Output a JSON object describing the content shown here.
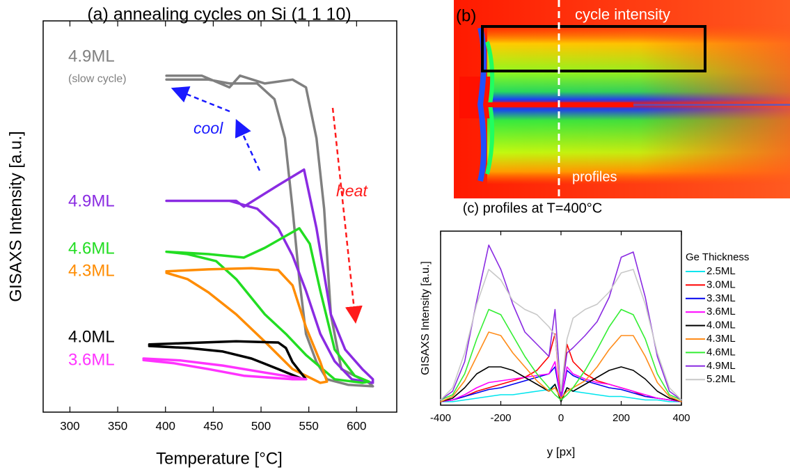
{
  "chart_data": [
    {
      "type": "line",
      "title": "(a) annealing cycles on Si (1 1 10)",
      "x_label": "Temperature [°C]",
      "y_label": "GISAXS Intensity [a.u.]",
      "xlim": [
        272,
        642
      ],
      "ylim": [
        0,
        100
      ],
      "xticks": [
        300,
        350,
        400,
        450,
        500,
        550,
        600
      ],
      "annotations": [
        "(slow cycle)",
        "cool",
        "heat"
      ],
      "series": [
        {
          "name": "4.9ML",
          "color": "#808080",
          "x": [
            401,
            438,
            467,
            478,
            504,
            533,
            547,
            558,
            566,
            573,
            584,
            613,
            617,
            591,
            569,
            558,
            547,
            540,
            533,
            525,
            514,
            496,
            467,
            445,
            401
          ],
          "values": [
            86,
            86,
            83,
            86,
            84,
            85,
            83,
            70,
            52,
            25,
            11,
            7.5,
            6.6,
            7,
            8.4,
            12.8,
            20,
            34,
            52,
            70,
            80,
            84,
            84,
            85,
            85
          ]
        },
        {
          "name": "4.9ML",
          "color": "#8a2be2",
          "x": [
            401,
            474,
            482,
            518,
            545,
            558,
            573,
            588,
            606,
            617,
            617,
            595,
            577,
            562,
            547,
            533,
            518,
            496,
            467,
            401
          ],
          "values": [
            54,
            54,
            52.5,
            58,
            62,
            47,
            25,
            16,
            11,
            8.4,
            7.5,
            8.4,
            13,
            20,
            31,
            40,
            47,
            52,
            54,
            54
          ]
        },
        {
          "name": "4.6ML",
          "color": "#22dd22",
          "x": [
            401,
            445,
            482,
            504,
            540,
            551,
            562,
            577,
            598,
            613,
            606,
            577,
            547,
            526,
            504,
            474,
            453,
            423,
            401
          ],
          "values": [
            41,
            40.4,
            39.5,
            42,
            47,
            43,
            31,
            16,
            9.3,
            7.8,
            7.5,
            8.4,
            14.6,
            20,
            25,
            34,
            38.6,
            40.4,
            41
          ]
        },
        {
          "name": "4.3ML",
          "color": "#ff8c00",
          "x": [
            401,
            445,
            490,
            518,
            533,
            547,
            562,
            569,
            562,
            533,
            504,
            474,
            445,
            423,
            401
          ],
          "values": [
            36,
            36.5,
            36.8,
            36.3,
            32.4,
            21.7,
            12.8,
            7.8,
            7.5,
            11,
            18,
            25,
            30.6,
            34,
            35.6
          ]
        },
        {
          "name": "4.0ML",
          "color": "#000000",
          "x": [
            383,
            416,
            474,
            518,
            526,
            533,
            547,
            544,
            518,
            490,
            460,
            423,
            383
          ],
          "values": [
            17.3,
            17.6,
            18.1,
            17.8,
            16.4,
            12.8,
            8.4,
            8.4,
            11,
            13.7,
            15.5,
            16.4,
            16.9
          ]
        },
        {
          "name": "3.6ML",
          "color": "#ff33ff",
          "x": [
            377,
            416,
            460,
            504,
            547,
            533,
            482,
            445,
            409,
            377
          ],
          "values": [
            13.7,
            13.2,
            11.9,
            10.1,
            8.4,
            8.4,
            9.3,
            11,
            12.5,
            13.3
          ]
        }
      ]
    },
    {
      "type": "line",
      "title": "(c) profiles at T=400°C",
      "x_label": "y [px]",
      "y_label": "GISAXS Intensity [a.u.]",
      "xlim": [
        -400,
        400
      ],
      "ylim": [
        0,
        100
      ],
      "xticks": [
        -400,
        -200,
        0,
        200,
        400
      ],
      "legend": "right",
      "legend_title": "Ge Thickness",
      "x": [
        -400,
        -360,
        -320,
        -280,
        -240,
        -200,
        -160,
        -120,
        -80,
        -40,
        -20,
        0,
        20,
        40,
        80,
        120,
        160,
        200,
        240,
        280,
        320,
        360,
        400
      ],
      "series": [
        {
          "name": "2.5ML",
          "color": "#00e5ee",
          "values": [
            2,
            2,
            3,
            4,
            5,
            6,
            6,
            7,
            8,
            9,
            12,
            3,
            10,
            8,
            7,
            6,
            5,
            5,
            4,
            3,
            3,
            2,
            2
          ]
        },
        {
          "name": "3.0ML",
          "color": "#ff0000",
          "values": [
            2,
            3,
            5,
            8,
            10,
            12,
            14,
            16,
            20,
            28,
            41,
            3,
            35,
            25,
            18,
            14,
            12,
            10,
            8,
            5,
            4,
            3,
            2
          ]
        },
        {
          "name": "3.3ML",
          "color": "#0000ee",
          "values": [
            2,
            3,
            5,
            7,
            9,
            10,
            12,
            14,
            16,
            18,
            22,
            3,
            20,
            17,
            14,
            12,
            10,
            9,
            7,
            5,
            4,
            3,
            2
          ]
        },
        {
          "name": "3.6ML",
          "color": "#ff00ff",
          "values": [
            2,
            3,
            6,
            10,
            13,
            14,
            15,
            16,
            17,
            18,
            25,
            3,
            22,
            18,
            15,
            13,
            12,
            10,
            8,
            6,
            4,
            3,
            2
          ]
        },
        {
          "name": "4.0ML",
          "color": "#000000",
          "values": [
            2,
            4,
            10,
            18,
            22,
            22,
            20,
            16,
            12,
            8,
            12,
            2,
            10,
            8,
            12,
            16,
            20,
            22,
            20,
            15,
            8,
            4,
            2
          ]
        },
        {
          "name": "4.3ML",
          "color": "#ff8c1a",
          "values": [
            2,
            5,
            14,
            28,
            42,
            40,
            30,
            22,
            14,
            8,
            10,
            4,
            8,
            10,
            14,
            22,
            32,
            40,
            40,
            28,
            13,
            5,
            2
          ]
        },
        {
          "name": "4.6ML",
          "color": "#33ee33",
          "values": [
            3,
            6,
            18,
            38,
            55,
            52,
            40,
            28,
            18,
            10,
            6,
            3,
            6,
            10,
            20,
            32,
            45,
            55,
            52,
            38,
            18,
            6,
            3
          ]
        },
        {
          "name": "4.9ML",
          "color": "#8a2be2",
          "values": [
            3,
            8,
            25,
            60,
            92,
            78,
            58,
            42,
            35,
            28,
            55,
            5,
            30,
            33,
            40,
            48,
            62,
            85,
            88,
            62,
            28,
            8,
            3
          ]
        },
        {
          "name": "5.2ML",
          "color": "#c8c8c8",
          "values": [
            3,
            10,
            30,
            58,
            78,
            72,
            60,
            55,
            52,
            45,
            40,
            8,
            38,
            50,
            55,
            58,
            65,
            76,
            78,
            58,
            30,
            10,
            3
          ]
        }
      ]
    }
  ],
  "image_panel": {
    "label": "(b)",
    "box_label": "cycle intensity",
    "line_label": "profiles"
  }
}
